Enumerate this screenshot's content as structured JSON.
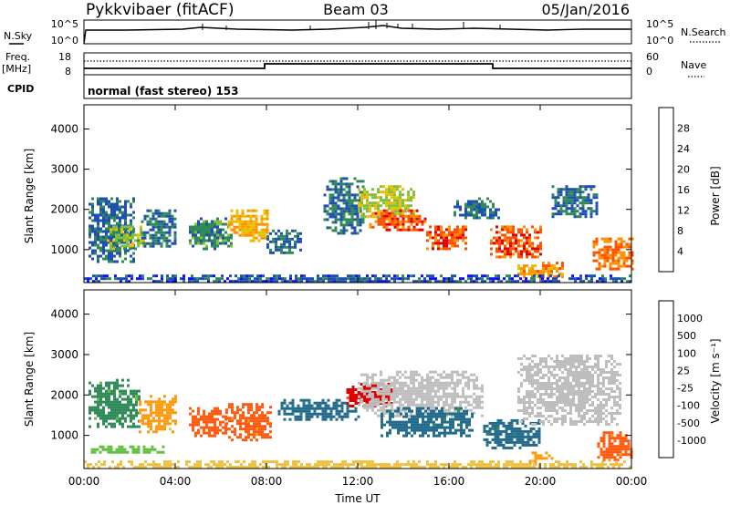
{
  "header": {
    "station": "Pykkvibaer (fitACF)",
    "beam": "Beam 03",
    "date": "05/Jan/2016"
  },
  "top_panels": {
    "nsky_label": "N.Sky",
    "nsky_ticks": [
      "10^5",
      "10^0"
    ],
    "nsearch_label": "N.Search",
    "nsearch_ticks": [
      "10^5",
      "10^0"
    ],
    "freq_label": "Freq.",
    "freq_unit": "[MHz]",
    "freq_ticks": [
      "18",
      "8"
    ],
    "nave_label": "Nave",
    "nave_ticks": [
      "60",
      "0"
    ],
    "cpid_label": "CPID",
    "cpid_text": "normal (fast stereo) 153"
  },
  "colors": {
    "power_scale": [
      "#1010ff",
      "#1f4fb0",
      "#2e8b57",
      "#80c040",
      "#e8c000",
      "#ff9000",
      "#ff5000",
      "#e00000"
    ],
    "velocity_scale": [
      "#1f3fa8",
      "#226b8c",
      "#2e8b57",
      "#60c040",
      "#c0c0c0",
      "#f0c040",
      "#ff9a10",
      "#ff5a10",
      "#e00000"
    ],
    "ground_scatter": "#bebebe"
  },
  "chart_data": [
    {
      "type": "heatmap",
      "title": "Power",
      "xlabel": "Time UT",
      "ylabel": "Slant Range [km]",
      "x_ticks": [
        "00:00",
        "04:00",
        "08:00",
        "12:00",
        "16:00",
        "20:00",
        "00:00"
      ],
      "xlim_hours": [
        0,
        24
      ],
      "y_ticks": [
        "1000",
        "2000",
        "3000",
        "4000"
      ],
      "ylim_km": [
        180,
        4600
      ],
      "colorbar": {
        "label": "Power [dB]",
        "ticks": [
          "4",
          "8",
          "12",
          "16",
          "20",
          "24",
          "28"
        ],
        "range": [
          0,
          32
        ]
      },
      "regions": [
        {
          "t": [
            0.2,
            2.2
          ],
          "r": [
            700,
            2300
          ],
          "value": 8
        },
        {
          "t": [
            1.0,
            2.6
          ],
          "r": [
            1000,
            1600
          ],
          "value": 14
        },
        {
          "t": [
            2.5,
            4.0
          ],
          "r": [
            1100,
            2000
          ],
          "value": 8
        },
        {
          "t": [
            4.6,
            6.5
          ],
          "r": [
            1000,
            1800
          ],
          "value": 10
        },
        {
          "t": [
            6.3,
            8.0
          ],
          "r": [
            1200,
            2000
          ],
          "value": 20
        },
        {
          "t": [
            8.0,
            9.5
          ],
          "r": [
            900,
            1500
          ],
          "value": 8
        },
        {
          "t": [
            10.5,
            12.2
          ],
          "r": [
            1400,
            2800
          ],
          "value": 8
        },
        {
          "t": [
            12.0,
            14.5
          ],
          "r": [
            1800,
            2600
          ],
          "value": 16
        },
        {
          "t": [
            12.5,
            15.0
          ],
          "r": [
            1500,
            2000
          ],
          "value": 26
        },
        {
          "t": [
            15.0,
            16.8
          ],
          "r": [
            1000,
            1600
          ],
          "value": 26
        },
        {
          "t": [
            16.2,
            18.2
          ],
          "r": [
            1800,
            2300
          ],
          "value": 8
        },
        {
          "t": [
            17.8,
            20.0
          ],
          "r": [
            800,
            1600
          ],
          "value": 26
        },
        {
          "t": [
            19.0,
            21.0
          ],
          "r": [
            300,
            700
          ],
          "value": 22
        },
        {
          "t": [
            20.5,
            22.5
          ],
          "r": [
            1800,
            2600
          ],
          "value": 8
        },
        {
          "t": [
            22.3,
            24.0
          ],
          "r": [
            500,
            1300
          ],
          "value": 24
        },
        {
          "t": [
            0.0,
            24.0
          ],
          "r": [
            180,
            380
          ],
          "value": 6
        }
      ]
    },
    {
      "type": "heatmap",
      "title": "Velocity",
      "xlabel": "Time UT",
      "ylabel": "Slant Range [km]",
      "x_ticks": [
        "00:00",
        "04:00",
        "08:00",
        "12:00",
        "16:00",
        "20:00",
        "00:00"
      ],
      "xlim_hours": [
        0,
        24
      ],
      "y_ticks": [
        "1000",
        "2000",
        "3000",
        "4000"
      ],
      "ylim_km": [
        180,
        4600
      ],
      "colorbar": {
        "label": "Velocity [m s⁻¹]",
        "ticks": [
          "1000",
          "500",
          "100",
          "25",
          "-25",
          "-100",
          "-500",
          "-1000"
        ]
      },
      "regions": [
        {
          "t": [
            0.2,
            2.4
          ],
          "r": [
            1200,
            2400
          ],
          "value": 100
        },
        {
          "t": [
            2.4,
            4.0
          ],
          "r": [
            1100,
            2000
          ],
          "value": -100
        },
        {
          "t": [
            0.3,
            3.5
          ],
          "r": [
            550,
            750
          ],
          "value": 25
        },
        {
          "t": [
            4.6,
            6.2
          ],
          "r": [
            1000,
            1700
          ],
          "value": -500
        },
        {
          "t": [
            6.2,
            8.2
          ],
          "r": [
            900,
            1800
          ],
          "value": -500
        },
        {
          "t": [
            8.5,
            12.0
          ],
          "r": [
            1400,
            1900
          ],
          "value": 500
        },
        {
          "t": [
            11.5,
            13.5
          ],
          "r": [
            1700,
            2300
          ],
          "value": -1000
        },
        {
          "t": [
            12.0,
            17.5
          ],
          "r": [
            1500,
            2600
          ],
          "value": 0
        },
        {
          "t": [
            13.0,
            17.0
          ],
          "r": [
            1000,
            1700
          ],
          "value": 500
        },
        {
          "t": [
            17.5,
            20.0
          ],
          "r": [
            700,
            1400
          ],
          "value": 500
        },
        {
          "t": [
            19.0,
            23.5
          ],
          "r": [
            1300,
            3000
          ],
          "value": 0
        },
        {
          "t": [
            19.5,
            20.5
          ],
          "r": [
            300,
            600
          ],
          "value": -100
        },
        {
          "t": [
            22.5,
            24.0
          ],
          "r": [
            400,
            1100
          ],
          "value": -500
        },
        {
          "t": [
            0.0,
            24.0
          ],
          "r": [
            180,
            380
          ],
          "value": -25
        }
      ]
    }
  ]
}
